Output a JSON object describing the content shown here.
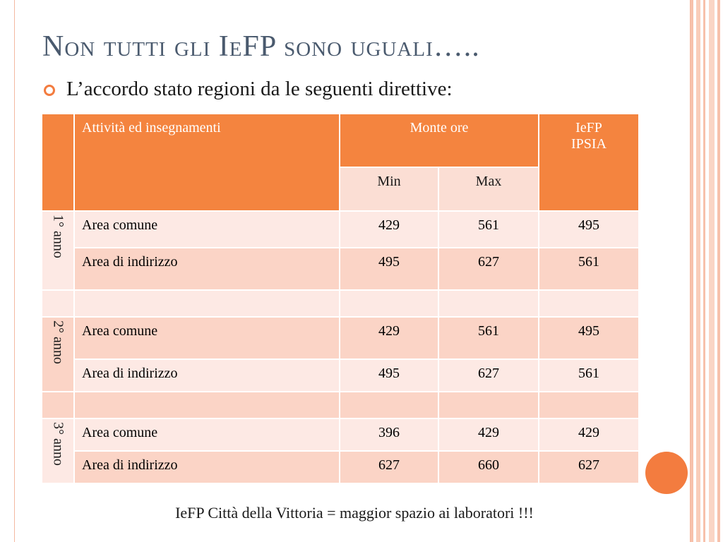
{
  "slide": {
    "title": "Non tutti gli IeFP sono uguali…..",
    "bullet": "L’accordo stato regioni da le seguenti direttive:",
    "footer": "IeFP Città della Vittoria = maggior spazio ai laboratori !!!"
  },
  "table": {
    "header": {
      "activities": "Attività ed insegnamenti",
      "hours": "Monte ore",
      "min": "Min",
      "max": "Max",
      "iefp_line1": "IeFP",
      "iefp_line2": "IPSIA"
    },
    "years": [
      {
        "label": "1° anno",
        "rows": [
          {
            "activity": "Area comune",
            "min": "429",
            "max": "561",
            "iefp": "495"
          },
          {
            "activity": "Area di indirizzo",
            "min": "495",
            "max": "627",
            "iefp": "561"
          }
        ]
      },
      {
        "label": "2° anno",
        "rows": [
          {
            "activity": "Area comune",
            "min": "429",
            "max": "561",
            "iefp": "495"
          },
          {
            "activity": "Area di indirizzo",
            "min": "495",
            "max": "627",
            "iefp": "561"
          }
        ]
      },
      {
        "label": "3° anno",
        "rows": [
          {
            "activity": "Area comune",
            "min": "396",
            "max": "429",
            "iefp": "429"
          },
          {
            "activity": "Area di indirizzo",
            "min": "627",
            "max": "660",
            "iefp": "627"
          }
        ]
      }
    ]
  },
  "colors": {
    "accent": "#f37c3f",
    "header_orange": "#f4843f",
    "title": "#4a5a6e",
    "row_dark": "#fbd4c6",
    "row_light": "#fde9e4"
  }
}
